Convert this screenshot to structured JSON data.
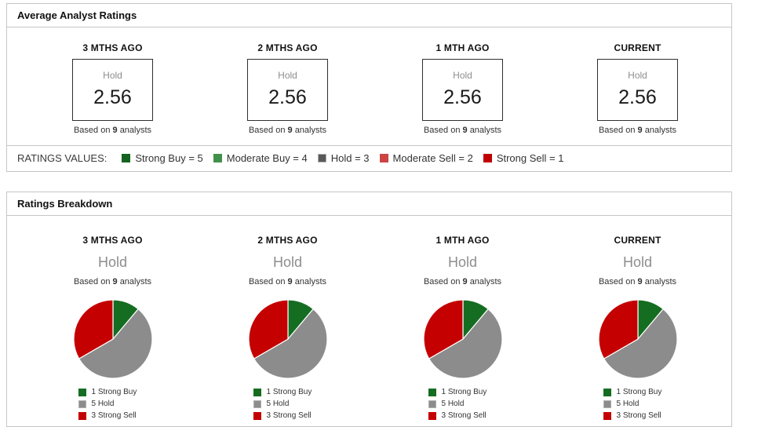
{
  "strings": {
    "based_on": "Based on",
    "analysts_word": "analysts"
  },
  "average_ratings_panel": {
    "title": "Average Analyst Ratings",
    "ratings_values_legend": {
      "label": "RATINGS VALUES:",
      "items": [
        {
          "label": "Strong Buy = 5",
          "color": "#146420"
        },
        {
          "label": "Moderate Buy = 4",
          "color": "#41904b"
        },
        {
          "label": "Hold = 3",
          "color": "#58595b"
        },
        {
          "label": "Moderate Sell = 2",
          "color": "#cc4444"
        },
        {
          "label": "Strong Sell = 1",
          "color": "#c00000"
        }
      ]
    }
  },
  "breakdown_panel": {
    "title": "Ratings Breakdown"
  },
  "chart_data": [
    {
      "type": "table",
      "title": "Average Analyst Ratings",
      "categories": [
        "3 MTHS AGO",
        "2 MTHS AGO",
        "1 MTH AGO",
        "CURRENT"
      ],
      "values": [
        "2.56",
        "2.56",
        "2.56",
        "2.56"
      ],
      "value_labels": [
        "Hold",
        "Hold",
        "Hold",
        "Hold"
      ],
      "analyst_counts": [
        "9",
        "9",
        "9",
        "9"
      ],
      "rating_scale_note": "Strong Buy = 5, Moderate Buy = 4, Hold = 3, Moderate Sell = 2, Strong Sell = 1"
    },
    {
      "type": "pie",
      "period": "3 MTHS AGO",
      "title": "Ratings Breakdown - 3 MTHS AGO",
      "center_label": "Hold",
      "analysts": "9",
      "labels": [
        "1 Strong Buy",
        "5 Hold",
        "3 Strong Sell"
      ],
      "values": [
        1,
        5,
        3
      ],
      "colors": [
        "#156d21",
        "#8c8c8c",
        "#c40000"
      ],
      "legend_position": "bottom"
    },
    {
      "type": "pie",
      "period": "2 MTHS AGO",
      "title": "Ratings Breakdown - 2 MTHS AGO",
      "center_label": "Hold",
      "analysts": "9",
      "labels": [
        "1 Strong Buy",
        "5 Hold",
        "3 Strong Sell"
      ],
      "values": [
        1,
        5,
        3
      ],
      "colors": [
        "#156d21",
        "#8c8c8c",
        "#c40000"
      ],
      "legend_position": "bottom"
    },
    {
      "type": "pie",
      "period": "1 MTH AGO",
      "title": "Ratings Breakdown - 1 MTH AGO",
      "center_label": "Hold",
      "analysts": "9",
      "labels": [
        "1 Strong Buy",
        "5 Hold",
        "3 Strong Sell"
      ],
      "values": [
        1,
        5,
        3
      ],
      "colors": [
        "#156d21",
        "#8c8c8c",
        "#c40000"
      ],
      "legend_position": "bottom"
    },
    {
      "type": "pie",
      "period": "CURRENT",
      "title": "Ratings Breakdown - CURRENT",
      "center_label": "Hold",
      "analysts": "9",
      "labels": [
        "1 Strong Buy",
        "5 Hold",
        "3 Strong Sell"
      ],
      "values": [
        1,
        5,
        3
      ],
      "colors": [
        "#156d21",
        "#8c8c8c",
        "#c40000"
      ],
      "legend_position": "bottom"
    }
  ]
}
